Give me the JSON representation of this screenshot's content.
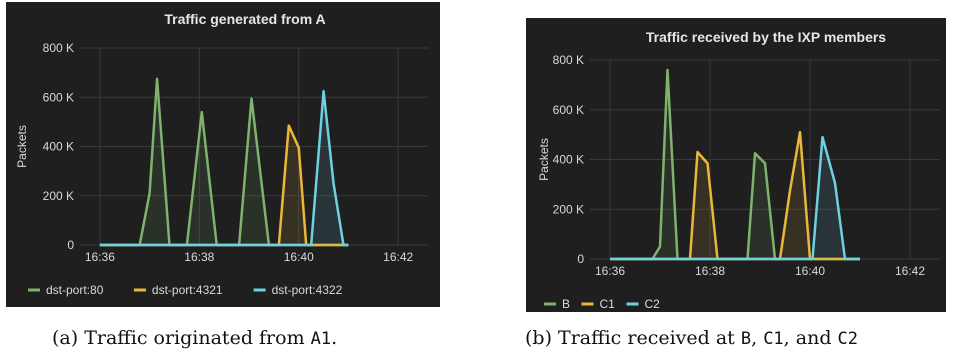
{
  "chart_data": [
    {
      "type": "area",
      "title": "Traffic generated from A",
      "ylabel": "Packets",
      "xlabel": "",
      "ylim": [
        0,
        800000
      ],
      "ytick_labels": [
        "0",
        "200 K",
        "400 K",
        "600 K",
        "800 K"
      ],
      "yticks": [
        0,
        200000,
        400000,
        600000,
        800000
      ],
      "xlim": [
        "16:35.6",
        "16:42.6"
      ],
      "xticks": [
        "16:36",
        "16:38",
        "16:40",
        "16:42"
      ],
      "grid": true,
      "legend_position": "bottom",
      "series": [
        {
          "name": "dst-port:80",
          "color": "#7eb26d",
          "points": [
            [
              "16:36",
              0
            ],
            [
              "16:36.8",
              0
            ],
            [
              "16:37.0",
              210000
            ],
            [
              "16:37.15",
              675000
            ],
            [
              "16:37.4",
              0
            ],
            [
              "16:37.75",
              0
            ],
            [
              "16:38.05",
              540000
            ],
            [
              "16:38.35",
              0
            ],
            [
              "16:38.8",
              0
            ],
            [
              "16:39.05",
              595000
            ],
            [
              "16:39.4",
              0
            ],
            [
              "16:41.0",
              0
            ]
          ]
        },
        {
          "name": "dst-port:4321",
          "color": "#eab839",
          "points": [
            [
              "16:36",
              0
            ],
            [
              "16:39.6",
              0
            ],
            [
              "16:39.8",
              485000
            ],
            [
              "16:40.0",
              395000
            ],
            [
              "16:40.15",
              0
            ],
            [
              "16:41.0",
              0
            ]
          ]
        },
        {
          "name": "dst-port:4322",
          "color": "#6ed0e0",
          "points": [
            [
              "16:36",
              0
            ],
            [
              "16:40.25",
              0
            ],
            [
              "16:40.5",
              625000
            ],
            [
              "16:40.7",
              250000
            ],
            [
              "16:40.9",
              0
            ],
            [
              "16:41.0",
              0
            ]
          ]
        }
      ]
    },
    {
      "type": "area",
      "title": "Traffic received by the IXP members",
      "ylabel": "Packets",
      "xlabel": "",
      "ylim": [
        0,
        800000
      ],
      "ytick_labels": [
        "0",
        "200 K",
        "400 K",
        "600 K",
        "800 K"
      ],
      "yticks": [
        0,
        200000,
        400000,
        600000,
        800000
      ],
      "xlim": [
        "16:35.6",
        "16:42.6"
      ],
      "xticks": [
        "16:36",
        "16:38",
        "16:40",
        "16:42"
      ],
      "grid": true,
      "legend_position": "bottom",
      "series": [
        {
          "name": "B",
          "color": "#7eb26d",
          "points": [
            [
              "16:36",
              0
            ],
            [
              "16:36.85",
              0
            ],
            [
              "16:37.0",
              50000
            ],
            [
              "16:37.15",
              760000
            ],
            [
              "16:37.35",
              0
            ],
            [
              "16:38.75",
              0
            ],
            [
              "16:38.9",
              425000
            ],
            [
              "16:39.1",
              385000
            ],
            [
              "16:39.3",
              0
            ],
            [
              "16:41.0",
              0
            ]
          ]
        },
        {
          "name": "C1",
          "color": "#eab839",
          "points": [
            [
              "16:36",
              0
            ],
            [
              "16:37.6",
              0
            ],
            [
              "16:37.75",
              430000
            ],
            [
              "16:37.95",
              385000
            ],
            [
              "16:38.15",
              0
            ],
            [
              "16:39.4",
              0
            ],
            [
              "16:39.6",
              275000
            ],
            [
              "16:39.8",
              510000
            ],
            [
              "16:40.0",
              0
            ],
            [
              "16:41.0",
              0
            ]
          ]
        },
        {
          "name": "C2",
          "color": "#6ed0e0",
          "points": [
            [
              "16:36",
              0
            ],
            [
              "16:40.05",
              0
            ],
            [
              "16:40.25",
              490000
            ],
            [
              "16:40.5",
              305000
            ],
            [
              "16:40.7",
              0
            ],
            [
              "16:41.0",
              0
            ]
          ]
        }
      ]
    }
  ],
  "captions": {
    "a_prefix": "(a) Traffic originated from ",
    "a_code": "A1",
    "a_suffix": ".",
    "b_prefix": "(b) Traffic received at ",
    "b_code_1": "B",
    "b_sep_1": ", ",
    "b_code_2": "C1",
    "b_sep_2": ", and ",
    "b_code_3": "C2"
  }
}
